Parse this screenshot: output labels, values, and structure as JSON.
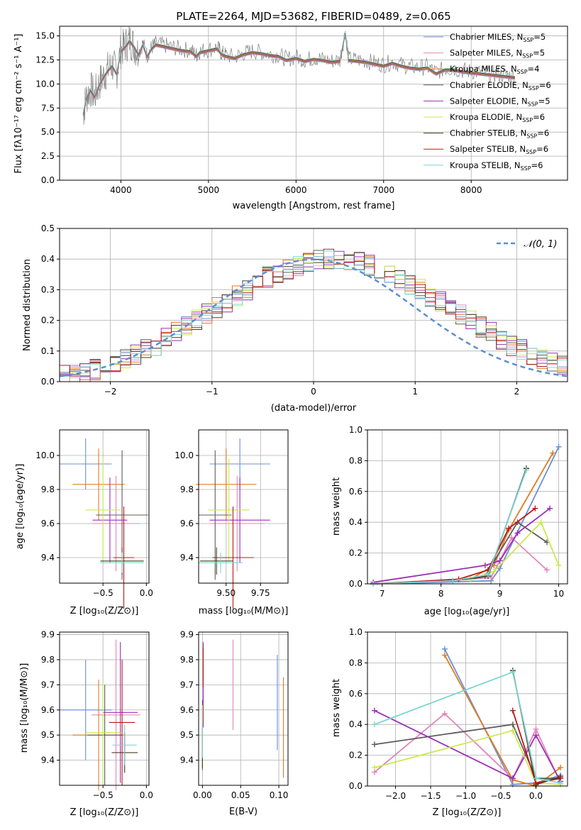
{
  "chart_data": [
    {
      "type": "line",
      "title": "PLATE=2264, MJD=53682, FIBERID=0489, z=0.065",
      "xlabel": "wavelength [Angstrom, rest frame]",
      "ylabel": "Flux [fλ10⁻¹⁷ erg cm⁻² s⁻¹ A⁻¹]",
      "xlim": [
        3300,
        9100
      ],
      "ylim": [
        0,
        16
      ],
      "xticks": [
        4000,
        5000,
        6000,
        7000,
        8000
      ],
      "yticks": [
        0.0,
        2.5,
        5.0,
        7.5,
        10.0,
        12.5,
        15.0
      ],
      "x_tick_labels": [
        "4000",
        "5000",
        "6000",
        "7000",
        "8000"
      ],
      "y_tick_labels": [
        "0.0",
        "2.5",
        "5.0",
        "7.5",
        "10.0",
        "12.5",
        "15.0"
      ],
      "legend_position": "top-right",
      "data_color": "#808080",
      "spectrum_x": [
        3570,
        3600,
        3650,
        3700,
        3750,
        3800,
        3850,
        3900,
        3950,
        4000,
        4050,
        4100,
        4150,
        4200,
        4250,
        4300,
        4350,
        4400,
        4500,
        4600,
        4700,
        4800,
        4860,
        4900,
        5000,
        5100,
        5150,
        5200,
        5300,
        5400,
        5500,
        5600,
        5700,
        5800,
        5890,
        6000,
        6100,
        6200,
        6300,
        6400,
        6500,
        6563,
        6600,
        6700,
        6800,
        6900,
        7000,
        7100,
        7200,
        7300,
        7400,
        7500,
        7600,
        7700,
        7800,
        7900,
        8000,
        8100,
        8200,
        8300,
        8400,
        8500
      ],
      "spectrum_y": [
        7.0,
        8.5,
        9.5,
        8.8,
        10.0,
        10.8,
        11.5,
        12.0,
        11.2,
        13.5,
        14.0,
        14.6,
        14.0,
        13.2,
        14.2,
        13.0,
        13.8,
        14.2,
        14.0,
        13.8,
        13.6,
        13.5,
        13.0,
        13.4,
        13.6,
        13.8,
        13.2,
        13.0,
        12.8,
        13.2,
        13.4,
        13.3,
        13.1,
        13.0,
        12.6,
        12.8,
        12.5,
        12.7,
        12.6,
        12.4,
        12.5,
        15.5,
        12.6,
        12.5,
        12.4,
        12.2,
        12.0,
        12.3,
        12.0,
        11.8,
        11.7,
        11.8,
        11.2,
        11.6,
        11.6,
        11.4,
        11.3,
        11.2,
        11.1,
        11.0,
        10.9,
        10.8
      ],
      "series": [
        {
          "name": "Chabrier MILES, Nₛₛₚ=5",
          "label_main": "Chabrier MILES, N",
          "label_sub": "SSP",
          "label_end": "=5",
          "color": "#6b8fd6"
        },
        {
          "name": "Salpeter MILES, Nₛₛₚ=5",
          "label_main": "Salpeter MILES, N",
          "label_sub": "SSP",
          "label_end": "=5",
          "color": "#e386bb"
        },
        {
          "name": "Kroupa MILES, Nₛₛₚ=4",
          "label_main": "Kroupa MILES, N",
          "label_sub": "SSP",
          "label_end": "=4",
          "color": "#e07b1f"
        },
        {
          "name": "Chabrier ELODIE, Nₛₛₚ=6",
          "label_main": "Chabrier ELODIE, N",
          "label_sub": "SSP",
          "label_end": "=6",
          "color": "#5c5c5c"
        },
        {
          "name": "Salpeter ELODIE, Nₛₛₚ=5",
          "label_main": "Salpeter ELODIE, N",
          "label_sub": "SSP",
          "label_end": "=5",
          "color": "#9b2fb5"
        },
        {
          "name": "Kroupa ELODIE, Nₛₛₚ=6",
          "label_main": "Kroupa ELODIE, N",
          "label_sub": "SSP",
          "label_end": "=6",
          "color": "#c9ea4e"
        },
        {
          "name": "Chabrier STELIB, Nₛₛₚ=6",
          "label_main": "Chabrier STELIB, N",
          "label_sub": "SSP",
          "label_end": "=6",
          "color": "#4a3a1f"
        },
        {
          "name": "Salpeter STELIB, Nₛₛₚ=6",
          "label_main": "Salpeter STELIB, N",
          "label_sub": "SSP",
          "label_end": "=6",
          "color": "#b81919"
        },
        {
          "name": "Kroupa STELIB, Nₛₛₚ=6",
          "label_main": "Kroupa STELIB, N",
          "label_sub": "SSP",
          "label_end": "=6",
          "color": "#7fd4d4"
        }
      ]
    },
    {
      "type": "histogram",
      "xlabel": "(data-model)/error",
      "ylabel": "Normed distribution",
      "xlim": [
        -2.5,
        2.5
      ],
      "ylim": [
        0,
        0.5
      ],
      "xticks": [
        -2,
        -1,
        0,
        1,
        2
      ],
      "yticks": [
        0.0,
        0.1,
        0.2,
        0.3,
        0.4,
        0.5
      ],
      "x_tick_labels": [
        "−2",
        "−1",
        "0",
        "1",
        "2"
      ],
      "y_tick_labels": [
        "0.0",
        "0.1",
        "0.2",
        "0.3",
        "0.4",
        "0.5"
      ],
      "legend_label": "𝒩(0, 1)",
      "legend_position": "top-right",
      "gauss_color": "#5b8ed6",
      "bin_width": 0.1,
      "base_values": [
        0.02,
        0.025,
        0.03,
        0.04,
        0.05,
        0.06,
        0.075,
        0.09,
        0.105,
        0.12,
        0.14,
        0.16,
        0.18,
        0.2,
        0.22,
        0.24,
        0.26,
        0.28,
        0.3,
        0.32,
        0.34,
        0.355,
        0.37,
        0.38,
        0.39,
        0.395,
        0.4,
        0.4,
        0.395,
        0.39,
        0.38,
        0.37,
        0.355,
        0.34,
        0.32,
        0.3,
        0.28,
        0.26,
        0.24,
        0.22,
        0.2,
        0.18,
        0.16,
        0.14,
        0.12,
        0.105,
        0.09,
        0.075,
        0.06,
        0.05
      ],
      "series_colors": [
        "#6b8fd6",
        "#e386bb",
        "#e07b1f",
        "#5c5c5c",
        "#9b2fb5",
        "#c9ea4e",
        "#4a3a1f",
        "#b81919",
        "#7fd4d4"
      ]
    },
    {
      "type": "errorbar",
      "xlabel": "Z [log₁₀(Z/Z⊙)]",
      "ylabel": "age  [log₁₀(age/yr)]",
      "xlim": [
        -1.0,
        0.03
      ],
      "ylim": [
        9.25,
        10.15
      ],
      "xticks": [
        -0.5,
        0.0
      ],
      "yticks": [
        9.4,
        9.6,
        9.8,
        10.0
      ],
      "x_tick_labels": [
        "−0.5",
        "0.0"
      ],
      "y_tick_labels": [
        "9.4",
        "9.6",
        "9.8",
        "10.0"
      ],
      "points": [
        {
          "x": -0.7,
          "xerr": 0.3,
          "y": 9.95,
          "yerr": 0.15,
          "color": "#6b8fd6"
        },
        {
          "x": -0.35,
          "xerr": 0.28,
          "y": 9.6,
          "yerr": 0.28,
          "color": "#e386bb"
        },
        {
          "x": -0.55,
          "xerr": 0.3,
          "y": 9.83,
          "yerr": 0.21,
          "color": "#e07b1f"
        },
        {
          "x": -0.28,
          "xerr": 0.3,
          "y": 9.65,
          "yerr": 0.38,
          "color": "#5c5c5c"
        },
        {
          "x": -0.42,
          "xerr": 0.2,
          "y": 9.62,
          "yerr": 0.25,
          "color": "#9b2fb5"
        },
        {
          "x": -0.5,
          "xerr": 0.2,
          "y": 9.68,
          "yerr": 0.3,
          "color": "#c9ea4e"
        },
        {
          "x": -0.28,
          "xerr": 0.25,
          "y": 9.38,
          "yerr": 0.08,
          "color": "#4a3a1f"
        },
        {
          "x": -0.26,
          "xerr": 0.12,
          "y": 9.4,
          "yerr": 0.3,
          "color": "#b81919"
        },
        {
          "x": -0.28,
          "xerr": 0.25,
          "y": 9.37,
          "yerr": 0.06,
          "color": "#7fd4d4"
        }
      ]
    },
    {
      "type": "errorbar",
      "xlabel": "mass [log₁₀(M/M⊙)]",
      "ylabel": "",
      "xlim": [
        9.3,
        9.95
      ],
      "ylim": [
        9.25,
        10.15
      ],
      "xticks": [
        9.5,
        9.75
      ],
      "yticks": [
        9.4,
        9.6,
        9.8,
        10.0
      ],
      "x_tick_labels": [
        "9.50",
        "9.75"
      ],
      "y_tick_labels": [
        "9.4",
        "9.6",
        "9.8",
        "10.0"
      ],
      "points": [
        {
          "x": 9.6,
          "xerr": 0.22,
          "y": 9.95,
          "yerr": 0.15,
          "color": "#6b8fd6"
        },
        {
          "x": 9.58,
          "xerr": 0.2,
          "y": 9.6,
          "yerr": 0.28,
          "color": "#e386bb"
        },
        {
          "x": 9.5,
          "xerr": 0.22,
          "y": 9.83,
          "yerr": 0.21,
          "color": "#e07b1f"
        },
        {
          "x": 9.42,
          "xerr": 0.12,
          "y": 9.65,
          "yerr": 0.38,
          "color": "#5c5c5c"
        },
        {
          "x": 9.6,
          "xerr": 0.22,
          "y": 9.62,
          "yerr": 0.25,
          "color": "#9b2fb5"
        },
        {
          "x": 9.52,
          "xerr": 0.15,
          "y": 9.68,
          "yerr": 0.3,
          "color": "#c9ea4e"
        },
        {
          "x": 9.43,
          "xerr": 0.12,
          "y": 9.38,
          "yerr": 0.08,
          "color": "#4a3a1f"
        },
        {
          "x": 9.55,
          "xerr": 0.15,
          "y": 9.4,
          "yerr": 0.3,
          "color": "#b81919"
        },
        {
          "x": 9.46,
          "xerr": 0.16,
          "y": 9.37,
          "yerr": 0.06,
          "color": "#7fd4d4"
        }
      ]
    },
    {
      "type": "line",
      "xlabel": "age  [log₁₀(age/yr)]",
      "ylabel": "mass weight",
      "xlim": [
        6.75,
        10.15
      ],
      "ylim": [
        0,
        1.0
      ],
      "xticks": [
        7,
        8,
        9,
        10
      ],
      "yticks": [
        0.0,
        0.2,
        0.4,
        0.6,
        0.8,
        1.0
      ],
      "x_tick_labels": [
        "7",
        "8",
        "9",
        "10"
      ],
      "y_tick_labels": [
        "0.0",
        "0.2",
        "0.4",
        "0.6",
        "0.8",
        "1.0"
      ],
      "series": [
        {
          "color": "#6b8fd6",
          "x": [
            6.85,
            8.0,
            8.85,
            9.0,
            10.0
          ],
          "y": [
            0.0,
            0.01,
            0.02,
            0.1,
            0.89
          ]
        },
        {
          "color": "#e386bb",
          "x": [
            6.85,
            8.0,
            8.85,
            9.2,
            9.8
          ],
          "y": [
            0.0,
            0.02,
            0.04,
            0.3,
            0.09
          ]
        },
        {
          "color": "#e07b1f",
          "x": [
            6.85,
            8.5,
            8.9,
            9.15,
            9.9
          ],
          "y": [
            0.0,
            0.03,
            0.12,
            0.35,
            0.85
          ]
        },
        {
          "color": "#5c5c5c",
          "x": [
            6.85,
            8.5,
            8.75,
            9.3,
            9.8
          ],
          "y": [
            0.0,
            0.03,
            0.05,
            0.4,
            0.27
          ]
        },
        {
          "color": "#9b2fb5",
          "x": [
            6.85,
            8.75,
            9.0,
            9.3,
            9.85
          ],
          "y": [
            0.01,
            0.12,
            0.15,
            0.33,
            0.49
          ]
        },
        {
          "color": "#c9ea4e",
          "x": [
            6.85,
            8.5,
            8.9,
            9.7,
            10.0
          ],
          "y": [
            0.0,
            0.03,
            0.08,
            0.4,
            0.12
          ]
        },
        {
          "color": "#4a3a1f",
          "x": [
            6.85,
            8.2,
            8.8,
            9.45
          ],
          "y": [
            0.0,
            0.02,
            0.05,
            0.75
          ]
        },
        {
          "color": "#b81919",
          "x": [
            6.85,
            8.3,
            8.8,
            9.15,
            9.6
          ],
          "y": [
            0.0,
            0.03,
            0.09,
            0.36,
            0.49
          ]
        },
        {
          "color": "#7fd4d4",
          "x": [
            6.85,
            8.2,
            8.8,
            9.45
          ],
          "y": [
            0.0,
            0.02,
            0.06,
            0.74
          ]
        }
      ]
    },
    {
      "type": "errorbar",
      "xlabel": "Z [log₁₀(Z/Z⊙)]",
      "ylabel": "mass [log₁₀(M/M⊙)]",
      "xlim": [
        -1.0,
        0.03
      ],
      "ylim": [
        9.3,
        9.91
      ],
      "xticks": [
        -0.5,
        0.0
      ],
      "yticks": [
        9.4,
        9.5,
        9.6,
        9.7,
        9.8,
        9.9
      ],
      "x_tick_labels": [
        "−0.5",
        "0.0"
      ],
      "y_tick_labels": [
        "9.4",
        "9.5",
        "9.6",
        "9.7",
        "9.8",
        "9.9"
      ],
      "points": [
        {
          "x": -0.7,
          "xerr": 0.3,
          "y": 9.6,
          "yerr": 0.2,
          "color": "#6b8fd6"
        },
        {
          "x": -0.35,
          "xerr": 0.28,
          "y": 9.58,
          "yerr": 0.3,
          "color": "#e386bb"
        },
        {
          "x": -0.55,
          "xerr": 0.3,
          "y": 9.5,
          "yerr": 0.22,
          "color": "#e07b1f"
        },
        {
          "x": -0.48,
          "xerr": 0.2,
          "y": 9.5,
          "yerr": 0.2,
          "color": "#5c5c5c"
        },
        {
          "x": -0.3,
          "xerr": 0.2,
          "y": 9.59,
          "yerr": 0.28,
          "color": "#9b2fb5"
        },
        {
          "x": -0.5,
          "xerr": 0.2,
          "y": 9.51,
          "yerr": 0.2,
          "color": "#c9ea4e"
        },
        {
          "x": -0.25,
          "xerr": 0.15,
          "y": 9.43,
          "yerr": 0.08,
          "color": "#4a3a1f"
        },
        {
          "x": -0.28,
          "xerr": 0.15,
          "y": 9.55,
          "yerr": 0.25,
          "color": "#b81919"
        },
        {
          "x": -0.25,
          "xerr": 0.14,
          "y": 9.46,
          "yerr": 0.08,
          "color": "#7fd4d4"
        }
      ]
    },
    {
      "type": "errorbar",
      "xlabel": "E(B-V)",
      "ylabel": "",
      "xlim": [
        -0.005,
        0.112
      ],
      "ylim": [
        9.3,
        9.91
      ],
      "xticks": [
        0.0,
        0.05,
        0.1
      ],
      "yticks": [
        9.4,
        9.5,
        9.6,
        9.7,
        9.8,
        9.9
      ],
      "x_tick_labels": [
        "0.00",
        "0.05",
        "0.10"
      ],
      "y_tick_labels": [
        "9.4",
        "9.5",
        "9.6",
        "9.7",
        "9.8",
        "9.9"
      ],
      "points": [
        {
          "x": 0.098,
          "xerr": 0,
          "y": 9.63,
          "yerr": 0.19,
          "color": "#6b8fd6"
        },
        {
          "x": 0.04,
          "xerr": 0,
          "y": 9.7,
          "yerr": 0.18,
          "color": "#e386bb"
        },
        {
          "x": 0.106,
          "xerr": 0,
          "y": 9.53,
          "yerr": 0.2,
          "color": "#e07b1f"
        },
        {
          "x": 0.0,
          "xerr": 0,
          "y": 9.5,
          "yerr": 0.14,
          "color": "#5c5c5c"
        },
        {
          "x": 0.001,
          "xerr": 0,
          "y": 9.7,
          "yerr": 0.17,
          "color": "#9b2fb5"
        },
        {
          "x": 0.0,
          "xerr": 0,
          "y": 9.5,
          "yerr": 0.12,
          "color": "#c9ea4e"
        },
        {
          "x": 0.0,
          "xerr": 0,
          "y": 9.45,
          "yerr": 0.08,
          "color": "#4a3a1f"
        },
        {
          "x": 0.001,
          "xerr": 0,
          "y": 9.77,
          "yerr": 0.08,
          "color": "#b81919"
        },
        {
          "x": 0.0,
          "xerr": 0,
          "y": 9.48,
          "yerr": 0.07,
          "color": "#7fd4d4"
        }
      ]
    },
    {
      "type": "line",
      "xlabel": "Z [log₁₀(Z/Z⊙)]",
      "ylabel": "mass weight",
      "xlim": [
        -2.4,
        0.45
      ],
      "ylim": [
        0,
        1.0
      ],
      "xticks": [
        -2.0,
        -1.5,
        -1.0,
        -0.5,
        0.0
      ],
      "yticks": [
        0.0,
        0.2,
        0.4,
        0.6,
        0.8,
        1.0
      ],
      "x_tick_labels": [
        "−2.0",
        "−1.5",
        "−1.0",
        "−0.5",
        "0.0"
      ],
      "y_tick_labels": [
        "0.0",
        "0.2",
        "0.4",
        "0.6",
        "0.8",
        "1.0"
      ],
      "series": [
        {
          "color": "#6b8fd6",
          "x": [
            -1.3,
            -0.33,
            0.0,
            0.35
          ],
          "y": [
            0.89,
            0.01,
            0.02,
            0.07
          ]
        },
        {
          "color": "#e386bb",
          "x": [
            -2.3,
            -1.3,
            -0.33,
            0.0,
            0.35
          ],
          "y": [
            0.09,
            0.47,
            0.05,
            0.37,
            0.02
          ]
        },
        {
          "color": "#e07b1f",
          "x": [
            -1.3,
            -0.33,
            0.0,
            0.35
          ],
          "y": [
            0.85,
            0.04,
            0.0,
            0.12
          ]
        },
        {
          "color": "#5c5c5c",
          "x": [
            -2.3,
            -0.33,
            0.0,
            0.35
          ],
          "y": [
            0.27,
            0.4,
            0.05,
            0.05
          ]
        },
        {
          "color": "#9b2fb5",
          "x": [
            -2.3,
            -0.33,
            0.0,
            0.35
          ],
          "y": [
            0.49,
            0.05,
            0.33,
            0.03
          ]
        },
        {
          "color": "#c9ea4e",
          "x": [
            -2.3,
            -0.33,
            0.0,
            0.35
          ],
          "y": [
            0.12,
            0.36,
            0.02,
            0.01
          ]
        },
        {
          "color": "#4a3a1f",
          "x": [
            -0.33,
            0.0,
            0.35
          ],
          "y": [
            0.75,
            0.01,
            0.06
          ]
        },
        {
          "color": "#b81919",
          "x": [
            -0.33,
            0.0,
            0.35
          ],
          "y": [
            0.49,
            0.02,
            0.05
          ]
        },
        {
          "color": "#7fd4d4",
          "x": [
            -2.3,
            -0.33,
            0.0,
            0.35
          ],
          "y": [
            0.4,
            0.74,
            0.05,
            0.02
          ]
        }
      ]
    }
  ]
}
